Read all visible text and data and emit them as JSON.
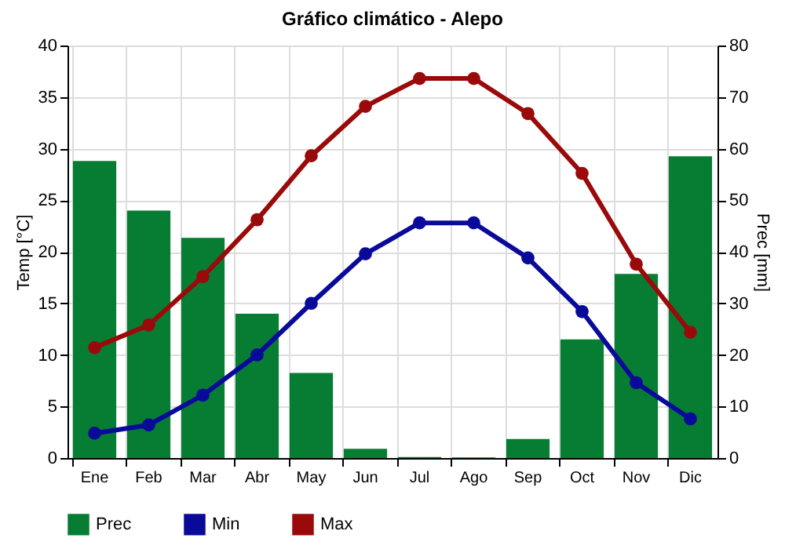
{
  "chart_data": {
    "type": "line",
    "title": "Gráfico climático - Alepo",
    "ylabel": "Temp [°C]",
    "y2label": "Prec [mm]",
    "categories": [
      "Ene",
      "Feb",
      "Mar",
      "Abr",
      "May",
      "Jun",
      "Jul",
      "Ago",
      "Sep",
      "Oct",
      "Nov",
      "Dic"
    ],
    "series": [
      {
        "name": "Prec",
        "type": "bar",
        "axis": "y2",
        "color": "#067d32",
        "values": [
          57.6,
          48,
          42.7,
          28,
          16.5,
          1.8,
          0.2,
          0.1,
          3.7,
          23,
          35.7,
          58.5
        ]
      },
      {
        "name": "Min",
        "color": "#0a0a9a",
        "values": [
          2.4,
          3.2,
          6.1,
          10,
          15,
          19.8,
          22.8,
          22.8,
          19.4,
          14.2,
          7.3,
          3.8
        ]
      },
      {
        "name": "Max",
        "color": "#9b0a0a",
        "values": [
          10.7,
          12.9,
          17.6,
          23.1,
          29.3,
          34.1,
          36.8,
          36.8,
          33.4,
          27.6,
          18.8,
          12.2
        ]
      }
    ],
    "ylim": [
      0,
      40
    ],
    "yticks": [
      0,
      5,
      10,
      15,
      20,
      25,
      30,
      35,
      40
    ],
    "y2lim": [
      0,
      80
    ],
    "y2ticks": [
      0,
      10,
      20,
      30,
      40,
      50,
      60,
      70,
      80
    ],
    "grid": true,
    "legend": "bottom left",
    "marker": "circle",
    "line_style": "solid"
  }
}
